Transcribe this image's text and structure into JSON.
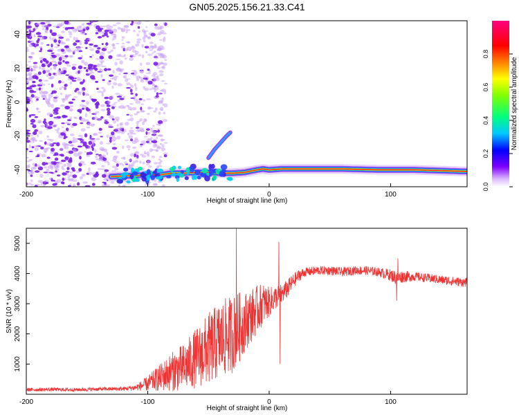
{
  "figure": {
    "title": "GN05.2025.156.21.33.C41"
  },
  "chart_data": [
    {
      "type": "heatmap",
      "title": "GN05.2025.156.21.33.C41",
      "xlabel": "Height of straight line (km)",
      "ylabel": "Frequency (Hz)",
      "xlim": [
        -200,
        163
      ],
      "ylim": [
        -50,
        48
      ],
      "xticks": [
        -200,
        -100,
        0,
        100
      ],
      "yticks": [
        -40,
        -20,
        0,
        20,
        40
      ],
      "colorbar": {
        "label": "Normalized spectral amplitude",
        "range": [
          0,
          1
        ],
        "ticks": [
          0,
          0.2,
          0.4,
          0.6,
          0.8
        ],
        "tick_labels": [
          "0.0",
          "0.2",
          "0.4",
          "0.6",
          "0.8"
        ],
        "colormap": [
          "#ffffff",
          "#8000ff",
          "#0000ff",
          "#00c8ff",
          "#00ff80",
          "#80ff00",
          "#ffff00",
          "#ff8000",
          "#ff0000",
          "#ff0080"
        ]
      },
      "ridge_line": {
        "x": [
          -130,
          -115,
          -100,
          -90,
          -80,
          -70,
          -60,
          -50,
          -40,
          -30,
          -20,
          -10,
          -5,
          0,
          10,
          30,
          60,
          90,
          120,
          163
        ],
        "y": [
          -44,
          -43.5,
          -43,
          -43,
          -42,
          -42,
          -41.5,
          -41.5,
          -42,
          -42,
          -41.5,
          -40,
          -39.5,
          -40,
          -39.5,
          -39.5,
          -39.5,
          -40,
          -40,
          -41
        ]
      },
      "drift_branch": {
        "x": [
          -50,
          -45,
          -40,
          -35,
          -32
        ],
        "y": [
          -33,
          -28,
          -24,
          -20,
          -18
        ]
      },
      "noise_region": {
        "x": [
          -200,
          -100
        ],
        "y": [
          -50,
          48
        ]
      }
    },
    {
      "type": "line",
      "xlabel": "Height of straight line (km)",
      "ylabel": "SNR (10 * v/v)",
      "xlim": [
        -200,
        163
      ],
      "ylim": [
        0,
        5500
      ],
      "xticks": [
        -200,
        -100,
        0,
        100
      ],
      "yticks": [
        1000,
        2000,
        3000,
        4000,
        5000
      ],
      "color": "#ee3333",
      "x": [
        -200,
        -180,
        -160,
        -140,
        -120,
        -110,
        -100,
        -90,
        -80,
        -70,
        -60,
        -50,
        -40,
        -35,
        -30,
        -25,
        -20,
        -15,
        -10,
        -5,
        0,
        5,
        10,
        15,
        20,
        25,
        30,
        40,
        50,
        60,
        70,
        80,
        90,
        100,
        105,
        110,
        120,
        130,
        140,
        150,
        163
      ],
      "values": [
        150,
        160,
        150,
        170,
        180,
        220,
        350,
        550,
        750,
        900,
        1200,
        1500,
        1800,
        1900,
        2000,
        2200,
        2400,
        2600,
        2800,
        3000,
        3050,
        3200,
        3300,
        3500,
        3750,
        3950,
        4050,
        4100,
        4100,
        4050,
        4100,
        4100,
        4050,
        3950,
        3850,
        3900,
        3900,
        3850,
        3800,
        3750,
        3700
      ],
      "noise_amplitude": [
        60,
        60,
        60,
        60,
        70,
        100,
        250,
        450,
        650,
        800,
        1000,
        1200,
        1300,
        1300,
        1300,
        1200,
        1000,
        900,
        800,
        700,
        500,
        400,
        350,
        300,
        250,
        200,
        150,
        150,
        150,
        150,
        150,
        150,
        150,
        200,
        250,
        200,
        150,
        150,
        150,
        150,
        150
      ],
      "spikes": [
        {
          "x": -27,
          "value": 5500
        },
        {
          "x": 8,
          "value": 5050
        },
        {
          "x": 9,
          "value": 1000
        },
        {
          "x": 105,
          "value": 3100
        },
        {
          "x": 106,
          "value": 4500
        }
      ]
    }
  ]
}
